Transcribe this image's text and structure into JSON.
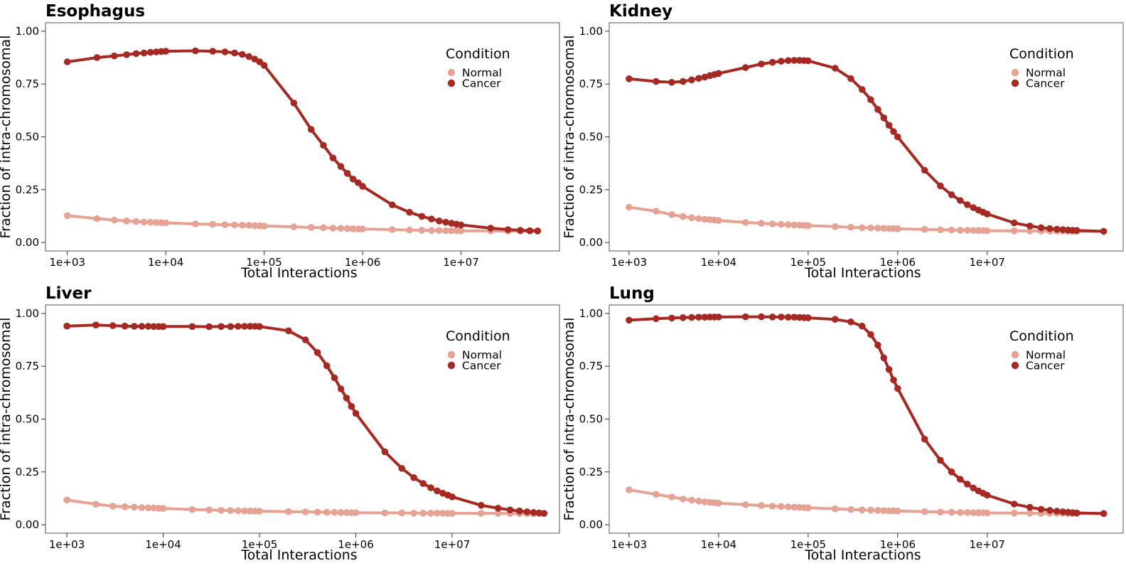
{
  "chart_data": [
    {
      "type": "line",
      "title": "Esophagus",
      "xlabel": "Total Interactions",
      "ylabel": "Fraction of intra-chromosomal",
      "xscale": "log",
      "xlim": [
        600,
        100000000
      ],
      "ylim": [
        -0.04,
        1.04
      ],
      "xticks": [
        1000,
        10000,
        100000,
        1000000,
        10000000
      ],
      "xtick_labels": [
        "1e+03",
        "1e+04",
        "1e+05",
        "1e+06",
        "1e+07"
      ],
      "yticks": [
        0,
        0.25,
        0.5,
        0.75,
        1.0
      ],
      "ytick_labels": [
        "0.00",
        "0.25",
        "0.50",
        "0.75",
        "1.00"
      ],
      "legend": {
        "title": "Condition",
        "placement": "top-right"
      },
      "series": [
        {
          "name": "Normal",
          "color": "#e6a395",
          "x": [
            1000,
            2000,
            3000,
            4000,
            5000,
            6000,
            7000,
            8000,
            9000,
            10000,
            20000,
            30000,
            40000,
            50000,
            60000,
            70000,
            80000,
            90000,
            100000,
            200000,
            300000,
            400000,
            500000,
            600000,
            700000,
            800000,
            900000,
            1000000,
            2000000,
            3000000,
            4000000,
            5000000,
            6000000,
            7000000,
            8000000,
            9000000,
            10000000,
            20000000,
            30000000,
            40000000,
            50000000,
            60000000
          ],
          "y": [
            0.127,
            0.113,
            0.106,
            0.102,
            0.099,
            0.097,
            0.096,
            0.095,
            0.094,
            0.093,
            0.088,
            0.086,
            0.084,
            0.083,
            0.082,
            0.081,
            0.08,
            0.079,
            0.078,
            0.074,
            0.071,
            0.07,
            0.068,
            0.067,
            0.066,
            0.065,
            0.064,
            0.064,
            0.061,
            0.059,
            0.058,
            0.057,
            0.057,
            0.056,
            0.056,
            0.056,
            0.055,
            0.055,
            0.054,
            0.054,
            0.054,
            0.054
          ]
        },
        {
          "name": "Cancer",
          "color": "#a52a24",
          "x": [
            1000,
            2000,
            3000,
            4000,
            5000,
            6000,
            7000,
            8000,
            9000,
            10000,
            20000,
            30000,
            40000,
            50000,
            60000,
            70000,
            80000,
            90000,
            100000,
            200000,
            300000,
            400000,
            500000,
            600000,
            700000,
            800000,
            900000,
            1000000,
            2000000,
            3000000,
            4000000,
            5000000,
            6000000,
            7000000,
            8000000,
            9000000,
            10000000,
            20000000,
            30000000,
            40000000,
            50000000,
            60000000
          ],
          "y": [
            0.855,
            0.875,
            0.883,
            0.889,
            0.894,
            0.897,
            0.9,
            0.902,
            0.904,
            0.905,
            0.907,
            0.905,
            0.902,
            0.897,
            0.89,
            0.88,
            0.868,
            0.855,
            0.838,
            0.66,
            0.535,
            0.46,
            0.4,
            0.36,
            0.327,
            0.3,
            0.283,
            0.266,
            0.178,
            0.143,
            0.124,
            0.111,
            0.102,
            0.096,
            0.091,
            0.087,
            0.083,
            0.068,
            0.061,
            0.058,
            0.056,
            0.055
          ]
        }
      ]
    },
    {
      "type": "line",
      "title": "Kidney",
      "xlabel": "Total Interactions",
      "ylabel": "Fraction of intra-chromosomal",
      "xscale": "log",
      "xlim": [
        600,
        330000000
      ],
      "ylim": [
        -0.04,
        1.04
      ],
      "xticks": [
        1000,
        10000,
        100000,
        1000000,
        10000000
      ],
      "xtick_labels": [
        "1e+03",
        "1e+04",
        "1e+05",
        "1e+06",
        "1e+07"
      ],
      "yticks": [
        0,
        0.25,
        0.5,
        0.75,
        1.0
      ],
      "ytick_labels": [
        "0.00",
        "0.25",
        "0.50",
        "0.75",
        "1.00"
      ],
      "legend": {
        "title": "Condition",
        "placement": "top-right"
      },
      "series": [
        {
          "name": "Normal",
          "color": "#e6a395",
          "x": [
            1000,
            2000,
            3000,
            4000,
            5000,
            6000,
            7000,
            8000,
            9000,
            10000,
            20000,
            30000,
            40000,
            50000,
            60000,
            70000,
            80000,
            90000,
            100000,
            200000,
            300000,
            400000,
            500000,
            600000,
            700000,
            800000,
            900000,
            1000000,
            2000000,
            3000000,
            4000000,
            5000000,
            6000000,
            7000000,
            8000000,
            9000000,
            10000000,
            20000000,
            30000000,
            40000000,
            50000000,
            60000000,
            70000000,
            80000000,
            90000000,
            100000000,
            200000000
          ],
          "y": [
            0.167,
            0.148,
            0.132,
            0.123,
            0.117,
            0.113,
            0.11,
            0.108,
            0.106,
            0.104,
            0.095,
            0.091,
            0.088,
            0.086,
            0.084,
            0.083,
            0.082,
            0.081,
            0.08,
            0.075,
            0.072,
            0.07,
            0.069,
            0.068,
            0.067,
            0.066,
            0.066,
            0.065,
            0.062,
            0.06,
            0.059,
            0.058,
            0.058,
            0.057,
            0.057,
            0.057,
            0.056,
            0.055,
            0.055,
            0.054,
            0.054,
            0.054,
            0.054,
            0.053,
            0.053,
            0.053,
            0.053
          ]
        },
        {
          "name": "Cancer",
          "color": "#a52a24",
          "x": [
            1000,
            2000,
            3000,
            4000,
            5000,
            6000,
            7000,
            8000,
            9000,
            10000,
            20000,
            30000,
            40000,
            50000,
            60000,
            70000,
            80000,
            90000,
            100000,
            200000,
            300000,
            400000,
            500000,
            600000,
            700000,
            800000,
            900000,
            1000000,
            2000000,
            3000000,
            4000000,
            5000000,
            6000000,
            7000000,
            8000000,
            9000000,
            10000000,
            20000000,
            30000000,
            40000000,
            50000000,
            60000000,
            70000000,
            80000000,
            90000000,
            100000000,
            200000000
          ],
          "y": [
            0.775,
            0.762,
            0.758,
            0.762,
            0.77,
            0.777,
            0.783,
            0.79,
            0.795,
            0.8,
            0.828,
            0.845,
            0.853,
            0.858,
            0.861,
            0.862,
            0.862,
            0.861,
            0.86,
            0.825,
            0.776,
            0.724,
            0.676,
            0.63,
            0.59,
            0.555,
            0.525,
            0.5,
            0.342,
            0.268,
            0.226,
            0.199,
            0.179,
            0.165,
            0.153,
            0.143,
            0.135,
            0.093,
            0.078,
            0.07,
            0.066,
            0.063,
            0.061,
            0.059,
            0.058,
            0.057,
            0.053
          ]
        }
      ]
    },
    {
      "type": "line",
      "title": "Liver",
      "xlabel": "Total Interactions",
      "ylabel": "Fraction of intra-chromosomal",
      "xscale": "log",
      "xlim": [
        600,
        130000000
      ],
      "ylim": [
        -0.04,
        1.04
      ],
      "xticks": [
        1000,
        10000,
        100000,
        1000000,
        10000000
      ],
      "xtick_labels": [
        "1e+03",
        "1e+04",
        "1e+05",
        "1e+06",
        "1e+07"
      ],
      "yticks": [
        0,
        0.25,
        0.5,
        0.75,
        1.0
      ],
      "ytick_labels": [
        "0.00",
        "0.25",
        "0.50",
        "0.75",
        "1.00"
      ],
      "legend": {
        "title": "Condition",
        "placement": "top-right"
      },
      "series": [
        {
          "name": "Normal",
          "color": "#e6a395",
          "x": [
            1000,
            2000,
            3000,
            4000,
            5000,
            6000,
            7000,
            8000,
            9000,
            10000,
            20000,
            30000,
            40000,
            50000,
            60000,
            70000,
            80000,
            90000,
            100000,
            200000,
            300000,
            400000,
            500000,
            600000,
            700000,
            800000,
            900000,
            1000000,
            2000000,
            3000000,
            4000000,
            5000000,
            6000000,
            7000000,
            8000000,
            9000000,
            10000000,
            20000000,
            30000000,
            40000000,
            50000000,
            60000000,
            70000000,
            80000000,
            90000000
          ],
          "y": [
            0.117,
            0.097,
            0.088,
            0.085,
            0.083,
            0.081,
            0.08,
            0.079,
            0.078,
            0.077,
            0.072,
            0.07,
            0.068,
            0.067,
            0.066,
            0.065,
            0.065,
            0.064,
            0.064,
            0.062,
            0.061,
            0.06,
            0.059,
            0.059,
            0.058,
            0.058,
            0.057,
            0.057,
            0.056,
            0.056,
            0.055,
            0.055,
            0.055,
            0.055,
            0.055,
            0.054,
            0.054,
            0.054,
            0.054,
            0.053,
            0.053,
            0.053,
            0.053,
            0.053,
            0.053
          ]
        },
        {
          "name": "Cancer",
          "color": "#a52a24",
          "x": [
            1000,
            2000,
            3000,
            4000,
            5000,
            6000,
            7000,
            8000,
            9000,
            10000,
            20000,
            30000,
            40000,
            50000,
            60000,
            70000,
            80000,
            90000,
            100000,
            200000,
            300000,
            400000,
            500000,
            600000,
            700000,
            800000,
            900000,
            1000000,
            2000000,
            3000000,
            4000000,
            5000000,
            6000000,
            7000000,
            8000000,
            9000000,
            10000000,
            20000000,
            30000000,
            40000000,
            50000000,
            60000000,
            70000000,
            80000000,
            90000000
          ],
          "y": [
            0.94,
            0.945,
            0.942,
            0.94,
            0.939,
            0.939,
            0.939,
            0.938,
            0.938,
            0.938,
            0.938,
            0.937,
            0.938,
            0.938,
            0.939,
            0.939,
            0.939,
            0.939,
            0.938,
            0.918,
            0.875,
            0.815,
            0.752,
            0.695,
            0.643,
            0.6,
            0.56,
            0.527,
            0.345,
            0.267,
            0.223,
            0.195,
            0.175,
            0.16,
            0.149,
            0.14,
            0.132,
            0.092,
            0.078,
            0.07,
            0.065,
            0.061,
            0.058,
            0.056,
            0.054
          ]
        }
      ]
    },
    {
      "type": "line",
      "title": "Lung",
      "xlabel": "Total Interactions",
      "ylabel": "Fraction of intra-chromosomal",
      "xscale": "log",
      "xlim": [
        600,
        330000000
      ],
      "ylim": [
        -0.04,
        1.04
      ],
      "xticks": [
        1000,
        10000,
        100000,
        1000000,
        10000000
      ],
      "xtick_labels": [
        "1e+03",
        "1e+04",
        "1e+05",
        "1e+06",
        "1e+07"
      ],
      "yticks": [
        0,
        0.25,
        0.5,
        0.75,
        1.0
      ],
      "ytick_labels": [
        "0.00",
        "0.25",
        "0.50",
        "0.75",
        "1.00"
      ],
      "legend": {
        "title": "Condition",
        "placement": "top-right"
      },
      "series": [
        {
          "name": "Normal",
          "color": "#e6a395",
          "x": [
            1000,
            2000,
            3000,
            4000,
            5000,
            6000,
            7000,
            8000,
            9000,
            10000,
            20000,
            30000,
            40000,
            50000,
            60000,
            70000,
            80000,
            90000,
            100000,
            200000,
            300000,
            400000,
            500000,
            600000,
            700000,
            800000,
            900000,
            1000000,
            2000000,
            3000000,
            4000000,
            5000000,
            6000000,
            7000000,
            8000000,
            9000000,
            10000000,
            20000000,
            30000000,
            40000000,
            50000000,
            60000000,
            70000000,
            80000000,
            90000000,
            100000000,
            200000000
          ],
          "y": [
            0.165,
            0.144,
            0.131,
            0.122,
            0.116,
            0.112,
            0.108,
            0.106,
            0.104,
            0.102,
            0.095,
            0.091,
            0.088,
            0.086,
            0.084,
            0.083,
            0.082,
            0.081,
            0.08,
            0.075,
            0.072,
            0.07,
            0.069,
            0.068,
            0.067,
            0.066,
            0.066,
            0.065,
            0.062,
            0.06,
            0.059,
            0.058,
            0.058,
            0.057,
            0.057,
            0.057,
            0.056,
            0.055,
            0.055,
            0.054,
            0.054,
            0.054,
            0.054,
            0.053,
            0.053,
            0.053,
            0.053
          ]
        },
        {
          "name": "Cancer",
          "color": "#a52a24",
          "x": [
            1000,
            2000,
            3000,
            4000,
            5000,
            6000,
            7000,
            8000,
            9000,
            10000,
            20000,
            30000,
            40000,
            50000,
            60000,
            70000,
            80000,
            90000,
            100000,
            200000,
            300000,
            400000,
            500000,
            600000,
            700000,
            800000,
            900000,
            1000000,
            2000000,
            3000000,
            4000000,
            5000000,
            6000000,
            7000000,
            8000000,
            9000000,
            10000000,
            20000000,
            30000000,
            40000000,
            50000000,
            60000000,
            70000000,
            80000000,
            90000000,
            100000000,
            200000000
          ],
          "y": [
            0.968,
            0.975,
            0.978,
            0.98,
            0.981,
            0.982,
            0.982,
            0.983,
            0.983,
            0.983,
            0.984,
            0.984,
            0.983,
            0.983,
            0.982,
            0.982,
            0.981,
            0.98,
            0.979,
            0.972,
            0.96,
            0.94,
            0.9,
            0.85,
            0.79,
            0.735,
            0.685,
            0.645,
            0.405,
            0.305,
            0.25,
            0.215,
            0.192,
            0.174,
            0.16,
            0.149,
            0.14,
            0.098,
            0.082,
            0.073,
            0.068,
            0.064,
            0.061,
            0.059,
            0.057,
            0.056,
            0.053
          ]
        }
      ]
    }
  ]
}
